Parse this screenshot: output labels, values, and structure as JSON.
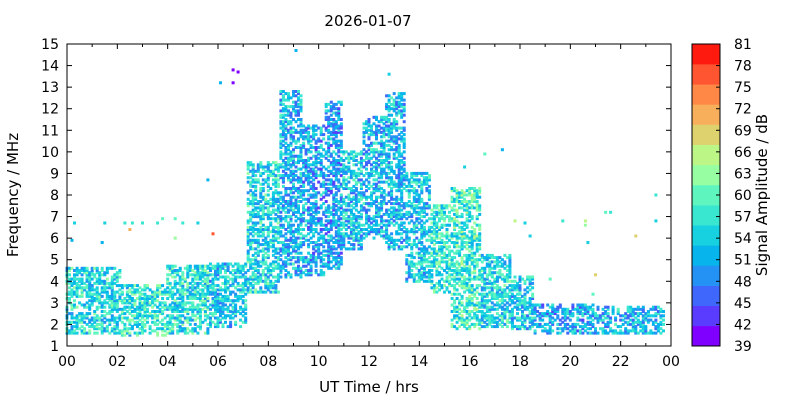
{
  "chart_data": {
    "type": "scatter",
    "title": "2026-01-07",
    "xlabel": "UT Time / hrs",
    "ylabel": "Frequency / MHz",
    "xlim": [
      0,
      24
    ],
    "ylim": [
      1,
      15
    ],
    "x_ticks": [
      "00",
      "02",
      "04",
      "06",
      "08",
      "10",
      "12",
      "14",
      "16",
      "18",
      "20",
      "22",
      "00"
    ],
    "y_ticks": [
      "1",
      "2",
      "3",
      "4",
      "5",
      "6",
      "7",
      "8",
      "9",
      "10",
      "11",
      "12",
      "13",
      "14",
      "15"
    ],
    "grid": false,
    "colorbar": {
      "label": "Signal Amplitude / dB",
      "range": [
        39,
        81
      ],
      "ticks": [
        "39",
        "42",
        "45",
        "48",
        "51",
        "54",
        "57",
        "60",
        "63",
        "66",
        "69",
        "72",
        "75",
        "78",
        "81"
      ],
      "colors": [
        "#8000ff",
        "#5a3cfe",
        "#3f67fb",
        "#2392f4",
        "#08b4ec",
        "#17d0e0",
        "#39e6d0",
        "#5ef6be",
        "#98fea2",
        "#bcf686",
        "#ddd26e",
        "#f8af5c",
        "#ff8847",
        "#ff5530",
        "#ff1a10"
      ]
    },
    "bands": [
      {
        "x_start": 0.0,
        "x_end": 2.2,
        "f_low": 1.6,
        "f_high": 4.6,
        "amp": 55
      },
      {
        "x_start": 2.2,
        "x_end": 4.0,
        "f_low": 1.5,
        "f_high": 3.8,
        "amp": 57
      },
      {
        "x_start": 4.0,
        "x_end": 5.7,
        "f_low": 1.6,
        "f_high": 4.7,
        "amp": 56
      },
      {
        "x_start": 5.7,
        "x_end": 7.2,
        "f_low": 1.9,
        "f_high": 4.8,
        "amp": 54
      },
      {
        "x_start": 7.2,
        "x_end": 8.5,
        "f_low": 3.5,
        "f_high": 9.5,
        "amp": 55
      },
      {
        "x_start": 8.5,
        "x_end": 9.4,
        "f_low": 4.2,
        "f_high": 12.8,
        "amp": 52
      },
      {
        "x_start": 9.4,
        "x_end": 10.3,
        "f_low": 4.3,
        "f_high": 11.2,
        "amp": 51
      },
      {
        "x_start": 10.3,
        "x_end": 11.0,
        "f_low": 4.6,
        "f_high": 12.3,
        "amp": 50
      },
      {
        "x_start": 11.0,
        "x_end": 11.8,
        "f_low": 5.5,
        "f_high": 10.0,
        "amp": 53
      },
      {
        "x_start": 11.8,
        "x_end": 12.7,
        "f_low": 6.0,
        "f_high": 11.6,
        "amp": 52
      },
      {
        "x_start": 12.7,
        "x_end": 13.5,
        "f_low": 5.5,
        "f_high": 12.7,
        "amp": 52
      },
      {
        "x_start": 13.5,
        "x_end": 14.5,
        "f_low": 4.0,
        "f_high": 9.0,
        "amp": 54
      },
      {
        "x_start": 14.5,
        "x_end": 15.3,
        "f_low": 3.5,
        "f_high": 7.5,
        "amp": 57
      },
      {
        "x_start": 15.3,
        "x_end": 16.5,
        "f_low": 1.8,
        "f_high": 8.3,
        "amp": 58
      },
      {
        "x_start": 16.5,
        "x_end": 17.7,
        "f_low": 1.9,
        "f_high": 5.2,
        "amp": 55
      },
      {
        "x_start": 17.7,
        "x_end": 18.6,
        "f_low": 1.8,
        "f_high": 4.2,
        "amp": 54
      },
      {
        "x_start": 18.6,
        "x_end": 21.0,
        "f_low": 1.6,
        "f_high": 2.9,
        "amp": 51
      },
      {
        "x_start": 21.0,
        "x_end": 23.8,
        "f_low": 1.6,
        "f_high": 2.8,
        "amp": 52
      }
    ],
    "isolated_points": [
      {
        "x": 9.1,
        "f": 14.7,
        "amp": 51
      },
      {
        "x": 6.6,
        "f": 13.8,
        "amp": 40
      },
      {
        "x": 6.8,
        "f": 13.7,
        "amp": 40
      },
      {
        "x": 6.6,
        "f": 13.2,
        "amp": 41
      },
      {
        "x": 6.1,
        "f": 13.2,
        "amp": 52
      },
      {
        "x": 12.8,
        "f": 13.6,
        "amp": 54
      },
      {
        "x": 5.6,
        "f": 8.7,
        "amp": 52
      },
      {
        "x": 5.8,
        "f": 6.2,
        "amp": 78
      },
      {
        "x": 15.8,
        "f": 9.3,
        "amp": 54
      },
      {
        "x": 16.6,
        "f": 9.9,
        "amp": 59
      },
      {
        "x": 17.3,
        "f": 10.1,
        "amp": 52
      },
      {
        "x": 0.3,
        "f": 6.7,
        "amp": 54
      },
      {
        "x": 0.2,
        "f": 5.9,
        "amp": 52
      },
      {
        "x": 1.5,
        "f": 6.7,
        "amp": 55
      },
      {
        "x": 1.4,
        "f": 5.8,
        "amp": 51
      },
      {
        "x": 2.3,
        "f": 6.7,
        "amp": 57
      },
      {
        "x": 2.6,
        "f": 6.7,
        "amp": 56
      },
      {
        "x": 2.5,
        "f": 6.4,
        "amp": 70
      },
      {
        "x": 3.0,
        "f": 6.7,
        "amp": 57
      },
      {
        "x": 3.6,
        "f": 6.7,
        "amp": 56
      },
      {
        "x": 3.8,
        "f": 6.9,
        "amp": 59
      },
      {
        "x": 4.3,
        "f": 6.9,
        "amp": 60
      },
      {
        "x": 4.3,
        "f": 6.0,
        "amp": 64
      },
      {
        "x": 4.6,
        "f": 6.7,
        "amp": 57
      },
      {
        "x": 5.2,
        "f": 6.7,
        "amp": 55
      },
      {
        "x": 17.8,
        "f": 6.8,
        "amp": 66
      },
      {
        "x": 18.2,
        "f": 6.7,
        "amp": 54
      },
      {
        "x": 18.4,
        "f": 6.1,
        "amp": 54
      },
      {
        "x": 19.7,
        "f": 6.8,
        "amp": 57
      },
      {
        "x": 20.6,
        "f": 6.8,
        "amp": 66
      },
      {
        "x": 20.6,
        "f": 6.6,
        "amp": 64
      },
      {
        "x": 21.4,
        "f": 7.2,
        "amp": 60
      },
      {
        "x": 21.6,
        "f": 7.2,
        "amp": 58
      },
      {
        "x": 22.6,
        "f": 6.1,
        "amp": 67
      },
      {
        "x": 23.4,
        "f": 8.0,
        "amp": 57
      },
      {
        "x": 23.4,
        "f": 6.8,
        "amp": 55
      },
      {
        "x": 20.7,
        "f": 5.8,
        "amp": 55
      },
      {
        "x": 19.2,
        "f": 4.1,
        "amp": 61
      },
      {
        "x": 21.0,
        "f": 4.3,
        "amp": 68
      },
      {
        "x": 20.9,
        "f": 3.4,
        "amp": 59
      }
    ]
  }
}
